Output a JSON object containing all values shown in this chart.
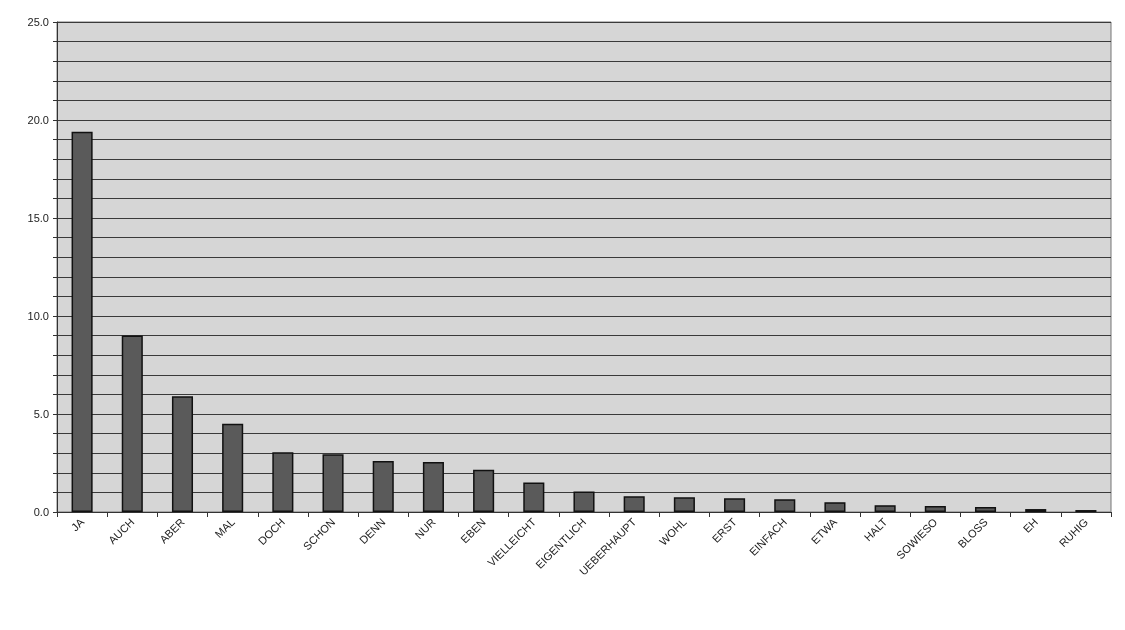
{
  "chart_data": {
    "type": "bar",
    "categories": [
      "JA",
      "AUCH",
      "ABER",
      "MAL",
      "DOCH",
      "SCHON",
      "DENN",
      "NUR",
      "EBEN",
      "VIELLEICHT",
      "EIGENTLICH",
      "UEBERHAUPT",
      "WOHL",
      "ERST",
      "EINFACH",
      "ETWA",
      "HALT",
      "SOWIESO",
      "BLOSS",
      "EH",
      "RUHIG"
    ],
    "values": [
      19.4,
      9.0,
      5.9,
      4.5,
      3.05,
      2.95,
      2.6,
      2.55,
      2.15,
      1.5,
      1.05,
      0.8,
      0.75,
      0.7,
      0.65,
      0.5,
      0.35,
      0.3,
      0.25,
      0.15,
      0.1
    ],
    "color": "#5a5a5a",
    "ylim": [
      0,
      25
    ],
    "yticks": [
      {
        "value": 0,
        "label": "0.0"
      },
      {
        "value": 1,
        "label": null
      },
      {
        "value": 2,
        "label": null
      },
      {
        "value": 3,
        "label": null
      },
      {
        "value": 4,
        "label": null
      },
      {
        "value": 5,
        "label": "5.0"
      },
      {
        "value": 6,
        "label": null
      },
      {
        "value": 7,
        "label": null
      },
      {
        "value": 8,
        "label": null
      },
      {
        "value": 9,
        "label": null
      },
      {
        "value": 10,
        "label": "10.0"
      },
      {
        "value": 11,
        "label": null
      },
      {
        "value": 12,
        "label": null
      },
      {
        "value": 13,
        "label": null
      },
      {
        "value": 14,
        "label": null
      },
      {
        "value": 15,
        "label": "15.0"
      },
      {
        "value": 16,
        "label": null
      },
      {
        "value": 17,
        "label": null
      },
      {
        "value": 18,
        "label": null
      },
      {
        "value": 19,
        "label": null
      },
      {
        "value": 20,
        "label": "20.0"
      },
      {
        "value": 21,
        "label": null
      },
      {
        "value": 22,
        "label": null
      },
      {
        "value": 23,
        "label": null
      },
      {
        "value": 24,
        "label": null
      },
      {
        "value": 25,
        "label": "25.0"
      }
    ],
    "grid": "y"
  }
}
